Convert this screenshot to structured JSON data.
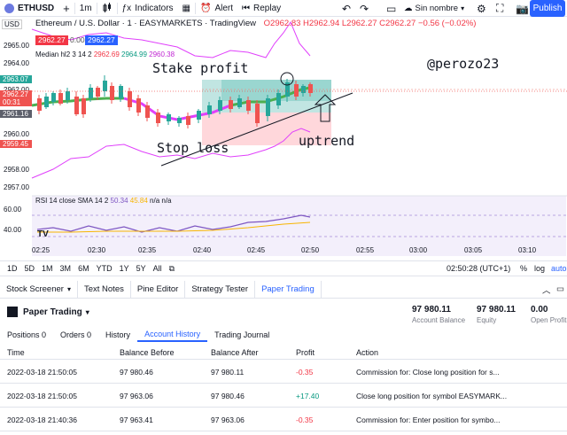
{
  "toolbar": {
    "symbol": "ETHUSD",
    "interval": "1m",
    "indicators_label": "Indicators",
    "alert_label": "Alert",
    "replay_label": "Replay",
    "layout_name": "Sin nombre",
    "publish_label": "Publish"
  },
  "chart": {
    "title": "Ethereum / U.S. Dollar · 1 · EASYMARKETS · TradingView",
    "ohlc": "O2962.83 H2962.94 L2962.27 C2962.27 −0.56 (−0.02%)",
    "sell_price": "2962.27",
    "spread": "0.00",
    "buy_price": "2962.27",
    "indicator_legend_name": "Median hl2 3 14 2",
    "indicator_v1": "2962.69",
    "indicator_v2": "2964.99",
    "indicator_v3": "2960.38",
    "rsi_legend": "RSI 14 close SMA 14 2",
    "rsi_v1": "50.34",
    "rsi_v2": "45.84",
    "rsi_na": "n/a n/a",
    "currency": "USD",
    "y_labels": [
      "2965.00",
      "2964.00",
      "2962.00",
      "2960.00",
      "2958.00",
      "2957.00"
    ],
    "y_tags": {
      "top_green": "2963.07",
      "red_price": "2962.27",
      "red_time": "00:31",
      "gray_price": "2961.16",
      "bottom_red": "2959.45"
    },
    "rsi_y_labels": [
      "60.00",
      "40.00"
    ],
    "annotations": {
      "stake_profit": "Stake profit",
      "stop_loss": "Stop loss",
      "uptrend": "uptrend",
      "author": "@perozo23"
    },
    "time_labels": [
      "02:25",
      "02:30",
      "02:35",
      "02:40",
      "02:45",
      "02:50",
      "02:55",
      "03:00",
      "03:05",
      "03:10"
    ],
    "colors": {
      "up": "#26a69a",
      "down": "#ef5350",
      "accent": "#2962ff",
      "band": "#d63be0"
    }
  },
  "rangebar": {
    "ranges": [
      "1D",
      "5D",
      "1M",
      "3M",
      "6M",
      "YTD",
      "1Y",
      "5Y",
      "All"
    ],
    "clock": "02:50:28 (UTC+1)",
    "pct": "%",
    "log": "log",
    "auto": "auto"
  },
  "bottom_tabs": [
    "Stock Screener",
    "Text Notes",
    "Pine Editor",
    "Strategy Tester",
    "Paper Trading"
  ],
  "paper": {
    "title": "Paper Trading",
    "account_balance_value": "97 980.11",
    "account_balance_label": "Account Balance",
    "equity_value": "97 980.11",
    "equity_label": "Equity",
    "open_profit_value": "0.00",
    "open_profit_label": "Open Profit",
    "subtabs": [
      "Positions 0",
      "Orders 0",
      "History",
      "Account History",
      "Trading Journal"
    ],
    "columns": [
      "Time",
      "Balance Before",
      "Balance After",
      "Profit",
      "Action"
    ],
    "rows": [
      {
        "time": "2022-03-18 21:50:05",
        "before": "97 980.46",
        "after": "97 980.11",
        "profit": "-0.35",
        "action": "Commission for: Close long position for s..."
      },
      {
        "time": "2022-03-18 21:50:05",
        "before": "97 963.06",
        "after": "97 980.46",
        "profit": "+17.40",
        "action": "Close long position for symbol EASYMARK..."
      },
      {
        "time": "2022-03-18 21:40:36",
        "before": "97 963.41",
        "after": "97 963.06",
        "profit": "-0.35",
        "action": "Commission for: Enter position for symbo..."
      }
    ]
  }
}
